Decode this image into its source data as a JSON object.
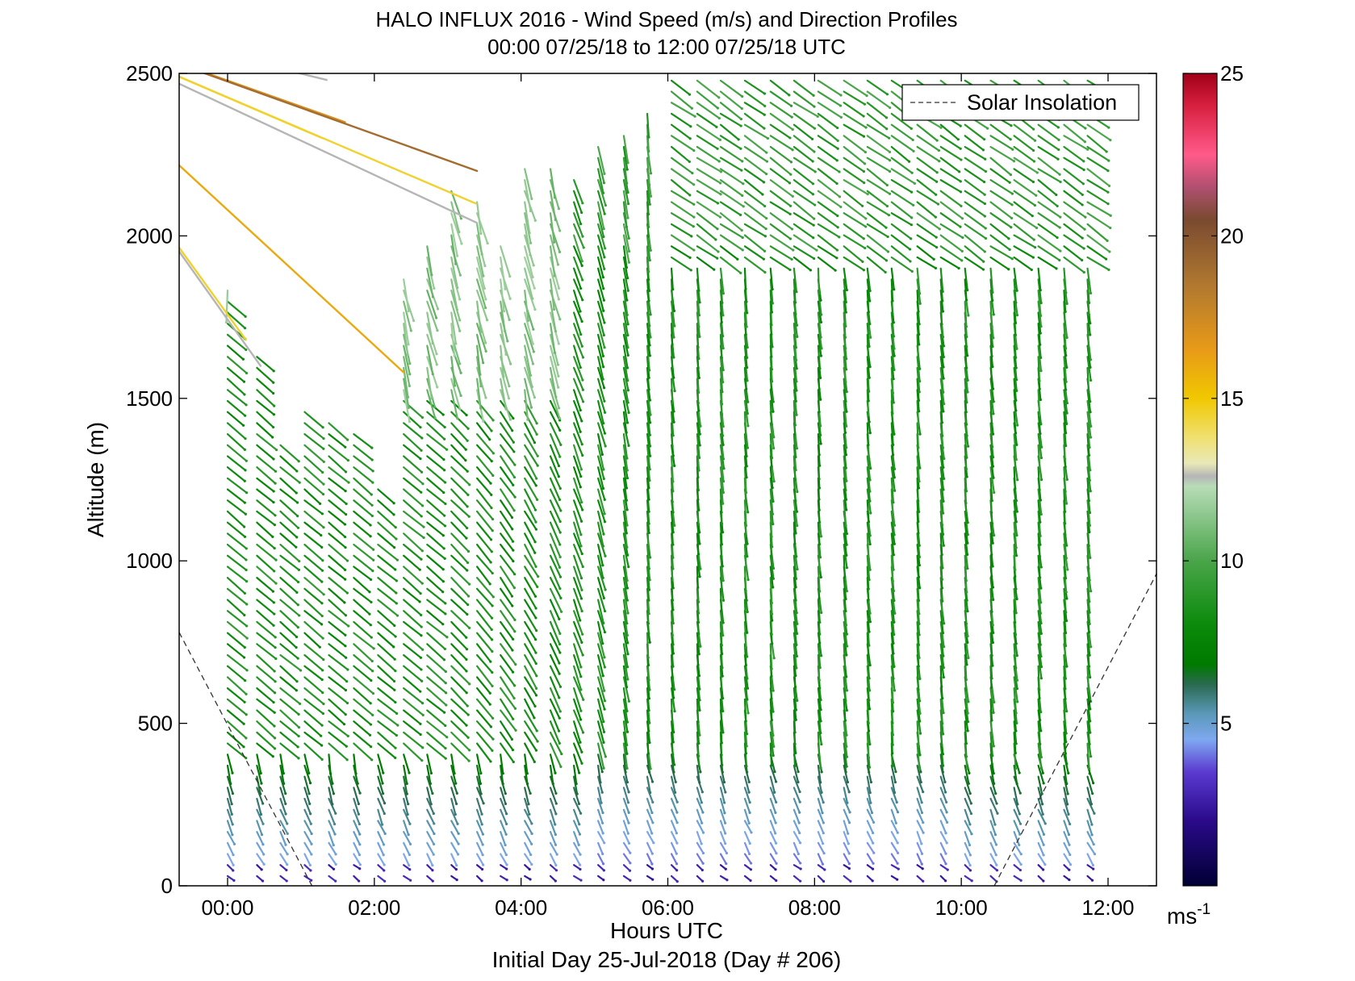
{
  "chart_data": {
    "type": "quiver",
    "title": "HALO INFLUX 2016 - Wind Speed (m/s) and Direction Profiles",
    "subtitle": "00:00 07/25/18 to 12:00 07/25/18  UTC",
    "xlabel": "Hours UTC",
    "xlabel2": "Initial Day 25-Jul-2018 (Day # 206)",
    "ylabel": "Altitude (m)",
    "x_ticks": [
      {
        "v": 0,
        "label": "00:00"
      },
      {
        "v": 2,
        "label": "02:00"
      },
      {
        "v": 4,
        "label": "04:00"
      },
      {
        "v": 6,
        "label": "06:00"
      },
      {
        "v": 8,
        "label": "08:00"
      },
      {
        "v": 10,
        "label": "10:00"
      },
      {
        "v": 12,
        "label": "12:00"
      }
    ],
    "y_ticks": [
      {
        "v": 0,
        "label": "0"
      },
      {
        "v": 500,
        "label": "500"
      },
      {
        "v": 1000,
        "label": "1000"
      },
      {
        "v": 1500,
        "label": "1500"
      },
      {
        "v": 2000,
        "label": "2000"
      },
      {
        "v": 2500,
        "label": "2500"
      }
    ],
    "xlim": [
      -0.66,
      12.66
    ],
    "ylim": [
      0,
      2500
    ],
    "colorbar": {
      "range": [
        0,
        25
      ],
      "ticks": [
        {
          "v": 5,
          "label": "5"
        },
        {
          "v": 10,
          "label": "10"
        },
        {
          "v": 15,
          "label": "15"
        },
        {
          "v": 20,
          "label": "20"
        },
        {
          "v": 25,
          "label": "25"
        }
      ],
      "unit_base": "ms",
      "unit_exp": "-1",
      "stops": [
        {
          "v": 0,
          "color": "#000033"
        },
        {
          "v": 2,
          "color": "#2a0a8a"
        },
        {
          "v": 3.5,
          "color": "#5a3ad0"
        },
        {
          "v": 4.5,
          "color": "#7fa8f0"
        },
        {
          "v": 5.3,
          "color": "#5a98b8"
        },
        {
          "v": 6.2,
          "color": "#2a6a50"
        },
        {
          "v": 6.8,
          "color": "#007a00"
        },
        {
          "v": 8,
          "color": "#0a8a0a"
        },
        {
          "v": 10,
          "color": "#4aa54a"
        },
        {
          "v": 12.3,
          "color": "#b8dcb8"
        },
        {
          "v": 12.6,
          "color": "#b5b5b5"
        },
        {
          "v": 13,
          "color": "#e8e8b8"
        },
        {
          "v": 13.8,
          "color": "#f0e070"
        },
        {
          "v": 15,
          "color": "#f0c800"
        },
        {
          "v": 16.5,
          "color": "#e89a18"
        },
        {
          "v": 18.5,
          "color": "#b07830"
        },
        {
          "v": 20.5,
          "color": "#7a4a30"
        },
        {
          "v": 21.5,
          "color": "#b05070"
        },
        {
          "v": 22.5,
          "color": "#ff5a8a"
        },
        {
          "v": 24,
          "color": "#d82040"
        },
        {
          "v": 25,
          "color": "#a00018"
        }
      ]
    },
    "legend": {
      "label": "Solar Insolation",
      "position": "top-right"
    },
    "solar_insolation_lines": [
      {
        "x": [
          -0.66,
          1.15
        ],
        "y": [
          780,
          0
        ]
      },
      {
        "x": [
          10.45,
          12.66
        ],
        "y": [
          0,
          960
        ]
      }
    ],
    "profiles_x_hours": [
      0,
      0.4,
      0.72,
      1.05,
      1.38,
      1.72,
      2.05,
      2.4,
      2.72,
      3.05,
      3.4,
      3.72,
      4.05,
      4.4,
      4.72,
      5.05,
      5.4,
      5.72,
      6.05,
      6.4,
      6.72,
      7.05,
      7.4,
      7.72,
      8.05,
      8.4,
      8.72,
      9.05,
      9.4,
      9.72,
      10.05,
      10.4,
      10.72,
      11.05,
      11.4,
      11.72
    ],
    "profile_top_altitude_m": [
      1850,
      1650,
      1380,
      1480,
      1450,
      1400,
      1250,
      1880,
      1980,
      2150,
      2120,
      1980,
      2220,
      2220,
      2180,
      2300,
      2320,
      2400,
      2500,
      2500,
      2500,
      2500,
      2500,
      2500,
      2500,
      2500,
      2500,
      2500,
      2500,
      2500,
      2500,
      2500,
      2500,
      2500,
      2500,
      2500
    ],
    "altitude_step_m": 34,
    "sample_vectors": [
      {
        "hour": 0,
        "alt": 1600,
        "speed": 8,
        "dir_deg": 305
      },
      {
        "hour": 2.05,
        "alt": 600,
        "speed": 8.5,
        "dir_deg": 310
      },
      {
        "hour": 4.05,
        "alt": 1000,
        "speed": 8,
        "dir_deg": 350
      },
      {
        "hour": 6.05,
        "alt": 800,
        "speed": 8.5,
        "dir_deg": 355
      },
      {
        "hour": 8.05,
        "alt": 1200,
        "speed": 9,
        "dir_deg": 355
      },
      {
        "hour": 10.05,
        "alt": 2300,
        "speed": 9,
        "dir_deg": 305
      },
      {
        "hour": 6.72,
        "alt": 250,
        "speed": 4.3,
        "dir_deg": 5
      },
      {
        "hour": 9.4,
        "alt": 40,
        "speed": 2.5,
        "dir_deg": 300
      }
    ],
    "outlier_vectors": [
      {
        "hour": 0.25,
        "alt": 1680,
        "speed": 14.5,
        "dir_deg": 300
      },
      {
        "hour": 0.45,
        "alt": 1600,
        "speed": 12.6,
        "dir_deg": 300
      },
      {
        "hour": 1.3,
        "alt": 2300,
        "speed": 14.5,
        "dir_deg": 310
      },
      {
        "hour": 1.6,
        "alt": 2350,
        "speed": 17,
        "dir_deg": 320
      },
      {
        "hour": 1.35,
        "alt": 2480,
        "speed": 12.6,
        "dir_deg": 330
      },
      {
        "hour": 2.4,
        "alt": 1580,
        "speed": 16,
        "dir_deg": 225
      },
      {
        "hour": 3.4,
        "alt": 2200,
        "speed": 19,
        "dir_deg": 0
      },
      {
        "hour": 3.38,
        "alt": 2100,
        "speed": 14.5,
        "dir_deg": 340
      },
      {
        "hour": 3.4,
        "alt": 2040,
        "speed": 12.6,
        "dir_deg": 0
      }
    ]
  }
}
